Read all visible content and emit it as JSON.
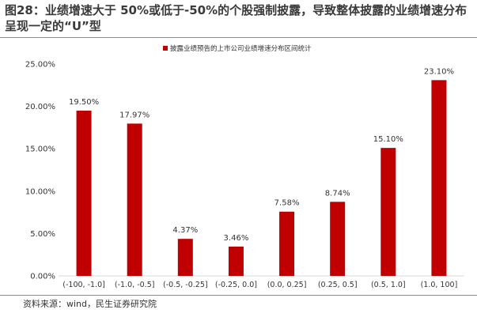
{
  "figure": {
    "title": "图28：业绩增速大于 50%或低于-50%的个股强制披露，导致整体披露的业绩增速分布呈现一定的“U”型",
    "source": "资料来源：wind，民生证券研究院"
  },
  "colors": {
    "bar": "#c00000",
    "axis": "#d9d9d9",
    "text": "#333333"
  },
  "chart_data": {
    "type": "bar",
    "categories": [
      "(-100, -1.0]",
      "(-1.0, -0.5]",
      "(-0.5, -0.25]",
      "(-0.25, 0.0]",
      "(0.0, 0.25]",
      "(0.25, 0.5]",
      "(0.5, 1.0]",
      "(1.0, 100]"
    ],
    "series": [
      {
        "name": "披露业绩预告的上市公司业绩增速分布区间统计",
        "values": [
          19.5,
          17.97,
          4.37,
          3.46,
          7.58,
          8.74,
          15.1,
          23.1
        ],
        "labels": [
          "19.50%",
          "17.97%",
          "4.37%",
          "3.46%",
          "7.58%",
          "8.74%",
          "15.10%",
          "23.10%"
        ]
      }
    ],
    "ylim": [
      0,
      25
    ],
    "yticks": [
      0,
      5,
      10,
      15,
      20,
      25
    ],
    "ytick_labels": [
      "0.00%",
      "5.00%",
      "10.00%",
      "15.00%",
      "20.00%",
      "25.00%"
    ],
    "grid": false,
    "legend": "top-center"
  }
}
